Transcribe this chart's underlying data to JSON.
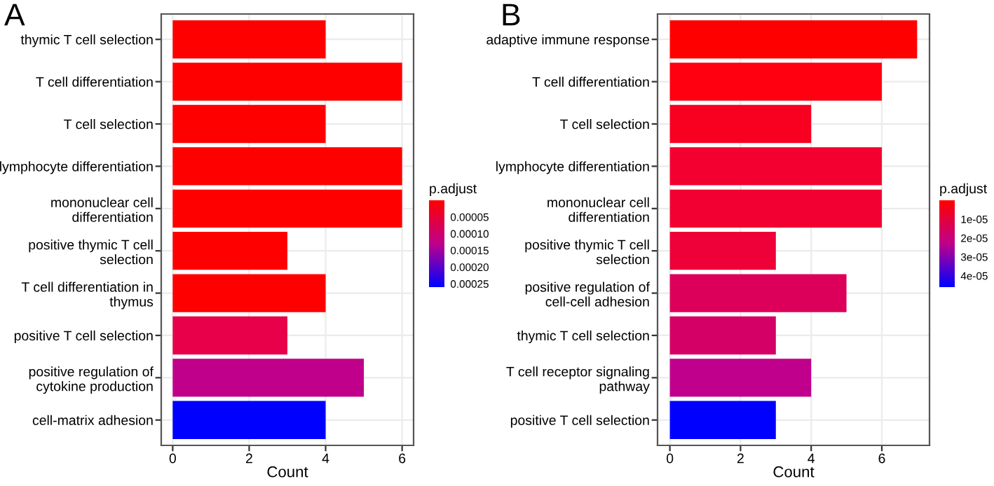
{
  "chart_data": [
    {
      "type": "bar",
      "orientation": "horizontal",
      "title": "A",
      "xlabel": "Count",
      "clabel": "p.adjust",
      "categories": [
        "thymic T cell selection",
        "T cell differentiation",
        "T cell selection",
        "lymphocyte differentiation",
        "mononuclear cell\ndifferentiation",
        "positive thymic T cell\nselection",
        "T cell differentiation in\nthymus",
        "positive T cell selection",
        "positive regulation of\ncytokine production",
        "cell-matrix adhesion"
      ],
      "values": [
        4,
        6,
        4,
        6,
        6,
        3,
        4,
        3,
        5,
        4
      ],
      "colors": [
        "#ff0000",
        "#ff0000",
        "#ff0000",
        "#ff0000",
        "#ff0000",
        "#ff0000",
        "#ff0000",
        "#e8004a",
        "#c0008a",
        "#0000ff"
      ],
      "xlim": [
        -0.3,
        6.3
      ],
      "xticks": [
        0,
        2,
        4,
        6
      ],
      "grid": true,
      "clim": [
        0,
        0.00026
      ],
      "cticks": [
        {
          "value": 5e-05,
          "label": "0.00005"
        },
        {
          "value": 0.0001,
          "label": "0.00010"
        },
        {
          "value": 0.00015,
          "label": "0.00015"
        },
        {
          "value": 0.0002,
          "label": "0.00020"
        },
        {
          "value": 0.00025,
          "label": "0.00025"
        }
      ]
    },
    {
      "type": "bar",
      "orientation": "horizontal",
      "title": "B",
      "xlabel": "Count",
      "clabel": "p.adjust",
      "categories": [
        "adaptive immune response",
        "T cell differentiation",
        "T cell selection",
        "lymphocyte differentiation",
        "mononuclear cell\ndifferentiation",
        "positive thymic T cell\nselection",
        "positive regulation of\ncell-cell adhesion",
        "thymic T cell selection",
        "T cell receptor signaling\npathway",
        "positive T cell selection"
      ],
      "values": [
        7,
        6,
        4,
        6,
        6,
        3,
        5,
        3,
        4,
        3
      ],
      "colors": [
        "#ff0000",
        "#fe0010",
        "#f80020",
        "#f40030",
        "#f20032",
        "#ee0038",
        "#dc005a",
        "#d40066",
        "#c0008c",
        "#0000ff"
      ],
      "xlim": [
        -0.35,
        7.35
      ],
      "xticks": [
        0,
        2,
        4,
        6
      ],
      "grid": true,
      "clim": [
        0,
        4.6e-05
      ],
      "cticks": [
        {
          "value": 1e-05,
          "label": "1e-05"
        },
        {
          "value": 2e-05,
          "label": "2e-05"
        },
        {
          "value": 3e-05,
          "label": "3e-05"
        },
        {
          "value": 4e-05,
          "label": "4e-05"
        }
      ]
    }
  ]
}
